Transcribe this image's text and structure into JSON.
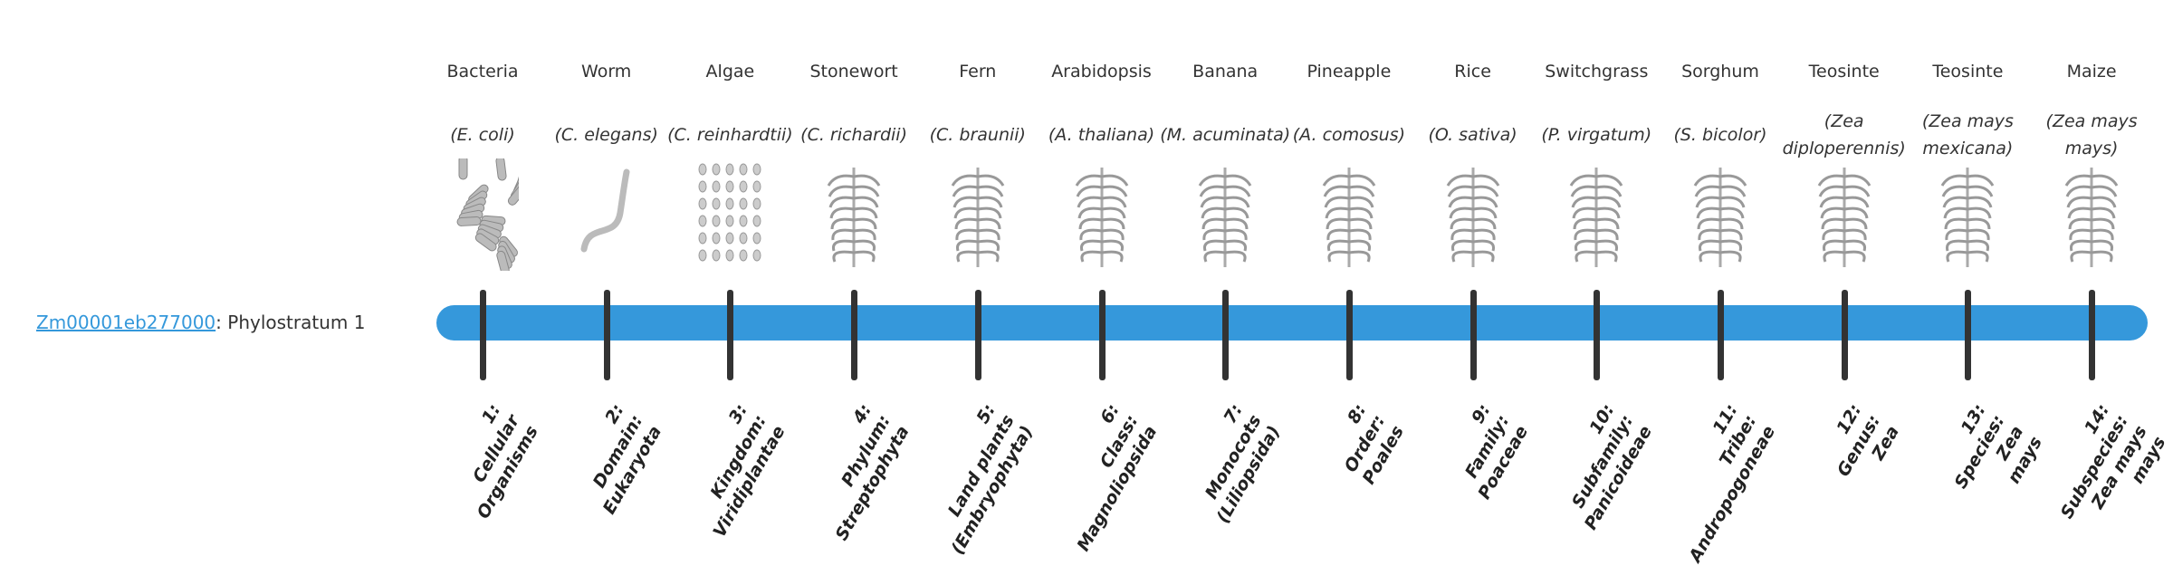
{
  "gene": {
    "id": "Zm00001eb277000",
    "suffix": ": Phylostratum 1"
  },
  "colors": {
    "bar": "#3598db",
    "tick": "#333333",
    "link": "#3498db"
  },
  "strata": [
    {
      "common": "Bacteria",
      "sci": "(E. coli)",
      "rank": [
        "1:",
        "Cellular",
        "Organisms"
      ],
      "icon": "bacteria-image"
    },
    {
      "common": "Worm",
      "sci": "(C. elegans)",
      "rank": [
        "2:",
        "Domain:",
        "Eukaryota"
      ],
      "icon": "worm-image"
    },
    {
      "common": "Algae",
      "sci": "(C. reinhardtii)",
      "rank": [
        "3:",
        "Kingdom:",
        "Viridiplantae"
      ],
      "icon": "algae-image"
    },
    {
      "common": "Stonewort",
      "sci": "(C. richardii)",
      "rank": [
        "4:",
        "Phylum:",
        "Streptophyta"
      ],
      "icon": "stonewort-image"
    },
    {
      "common": "Fern",
      "sci": "(C. braunii)",
      "rank": [
        "5:",
        "Land plants",
        "(Embryophyta)"
      ],
      "icon": "fern-image"
    },
    {
      "common": "Arabidopsis",
      "sci": "(A. thaliana)",
      "rank": [
        "6:",
        "Class:",
        "Magnoliopsida"
      ],
      "icon": "arabidopsis-image"
    },
    {
      "common": "Banana",
      "sci": "(M. acuminata)",
      "rank": [
        "7:",
        "Monocots",
        "(Liliopsida)"
      ],
      "icon": "banana-image"
    },
    {
      "common": "Pineapple",
      "sci": "(A. comosus)",
      "rank": [
        "8:",
        "Order:",
        "Poales"
      ],
      "icon": "pineapple-image"
    },
    {
      "common": "Rice",
      "sci": "(O. sativa)",
      "rank": [
        "9:",
        "Family:",
        "Poaceae"
      ],
      "icon": "rice-image"
    },
    {
      "common": "Switchgrass",
      "sci": "(P. virgatum)",
      "rank": [
        "10:",
        "Subfamily:",
        "Panicoideae"
      ],
      "icon": "switchgrass-image"
    },
    {
      "common": "Sorghum",
      "sci": "(S. bicolor)",
      "rank": [
        "11:",
        "Tribe:",
        "Andropogoneae"
      ],
      "icon": "sorghum-image"
    },
    {
      "common": "Teosinte",
      "sci": "(Zea diploperennis)",
      "rank": [
        "12:",
        "Genus:",
        "Zea"
      ],
      "icon": "teosinte-image"
    },
    {
      "common": "Teosinte",
      "sci": "(Zea mays mexicana)",
      "rank": [
        "13:",
        "Species:",
        "Zea",
        "mays"
      ],
      "icon": "teosinte-image"
    },
    {
      "common": "Maize",
      "sci": "(Zea mays mays)",
      "rank": [
        "14:",
        "Subspecies:",
        "Zea mays",
        "mays"
      ],
      "icon": "maize-image"
    }
  ]
}
